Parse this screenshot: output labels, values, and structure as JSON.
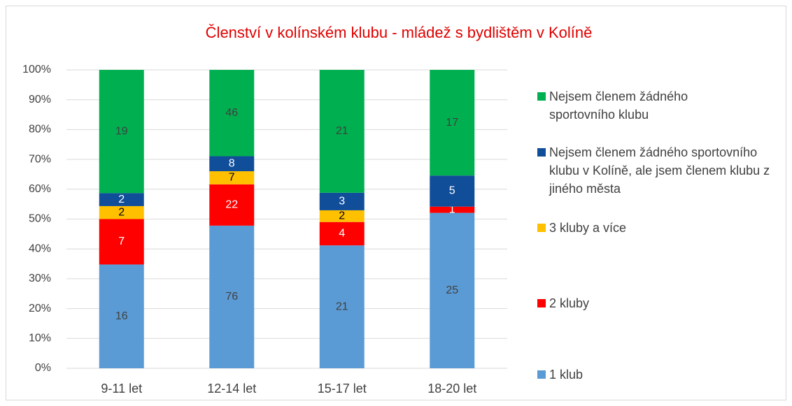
{
  "chart_data": {
    "type": "bar",
    "stacked_percent": true,
    "title": "Členství v kolínském klubu - mládež s bydlištěm v Kolíně",
    "categories": [
      "9-11 let",
      "12-14 let",
      "15-17 let",
      "18-20 let"
    ],
    "series": [
      {
        "name": "1 klub",
        "color": "#5b9bd5",
        "label_color": "#404040",
        "values": [
          16,
          76,
          21,
          25
        ]
      },
      {
        "name": "2 kluby",
        "color": "#ff0000",
        "label_color": "#ffffff",
        "values": [
          7,
          22,
          4,
          1
        ]
      },
      {
        "name": "3 kluby a více",
        "color": "#ffc000",
        "label_color": "#000000",
        "values": [
          2,
          7,
          2,
          null
        ]
      },
      {
        "name": "Nejsem členem žádného sportovního klubu v Kolíně, ale jsem členem klubu z jiného města",
        "color": "#104e9a",
        "label_color": "#ffffff",
        "values": [
          2,
          8,
          3,
          5
        ]
      },
      {
        "name": "Nejsem členem žádného sportovního klubu",
        "color": "#00b050",
        "label_color": "#404040",
        "values": [
          19,
          46,
          21,
          17
        ]
      }
    ],
    "ylim": [
      0,
      100
    ],
    "yticks": [
      {
        "value": 0,
        "label": "0%"
      },
      {
        "value": 10,
        "label": "10%"
      },
      {
        "value": 20,
        "label": "20%"
      },
      {
        "value": 30,
        "label": "30%"
      },
      {
        "value": 40,
        "label": "40%"
      },
      {
        "value": 50,
        "label": "50%"
      },
      {
        "value": 60,
        "label": "60%"
      },
      {
        "value": 70,
        "label": "70%"
      },
      {
        "value": 80,
        "label": "80%"
      },
      {
        "value": 90,
        "label": "90%"
      },
      {
        "value": 100,
        "label": "100%"
      }
    ],
    "grid": true,
    "legend": "right"
  }
}
